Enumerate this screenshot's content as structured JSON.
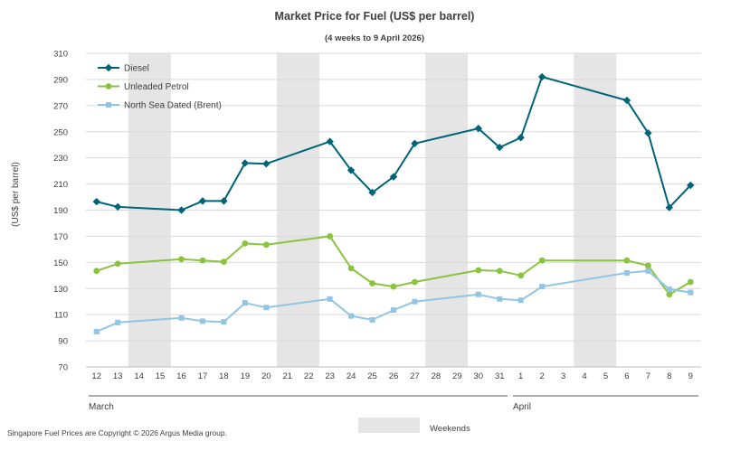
{
  "chart_data": {
    "type": "line",
    "title": "Market Price for Fuel (US$ per barrel)",
    "subtitle": "(4 weeks to 9 April 2026)",
    "xlabel": "",
    "ylabel": "(US$ per barrel)",
    "ylim": [
      70,
      310
    ],
    "yticks": [
      70,
      90,
      110,
      130,
      150,
      170,
      190,
      210,
      230,
      250,
      270,
      290,
      310
    ],
    "grid": true,
    "legend_position": "top-left",
    "categories": [
      "12",
      "13",
      "14",
      "15",
      "16",
      "17",
      "18",
      "19",
      "20",
      "21",
      "22",
      "23",
      "24",
      "25",
      "26",
      "27",
      "28",
      "29",
      "30",
      "31",
      "1",
      "2",
      "3",
      "4",
      "5",
      "6",
      "7",
      "8",
      "9"
    ],
    "months": [
      {
        "label": "March",
        "from": 0,
        "to": 19
      },
      {
        "label": "April",
        "from": 20,
        "to": 28
      }
    ],
    "weekends": [
      [
        2,
        3
      ],
      [
        9,
        10
      ],
      [
        16,
        17
      ],
      [
        23,
        24
      ]
    ],
    "weekends_label": "Weekends",
    "series": [
      {
        "name": "Diesel",
        "color": "#006479",
        "marker": "diamond",
        "values": [
          196.5,
          192.5,
          null,
          null,
          190,
          197,
          197,
          226,
          225.5,
          null,
          null,
          242.5,
          220.5,
          203.5,
          215.5,
          241,
          null,
          null,
          252.5,
          238,
          245.5,
          292,
          null,
          null,
          null,
          274,
          249,
          192,
          209
        ]
      },
      {
        "name": "Unleaded Petrol",
        "color": "#8ac43f",
        "marker": "circle",
        "values": [
          143.5,
          149,
          null,
          null,
          152.5,
          151.5,
          150.5,
          164.5,
          163.5,
          null,
          null,
          170,
          145.5,
          134,
          131.5,
          135,
          null,
          null,
          144,
          143.5,
          140,
          151.5,
          null,
          null,
          null,
          151.5,
          147.5,
          125.5,
          135
        ]
      },
      {
        "name": "North Sea Dated (Brent)",
        "color": "#92c5e3",
        "marker": "square",
        "values": [
          97,
          104,
          null,
          null,
          107.5,
          105,
          104.5,
          119,
          115.5,
          null,
          null,
          122,
          109,
          106,
          113.5,
          120,
          null,
          null,
          125.5,
          122,
          121,
          131.5,
          null,
          null,
          null,
          142,
          143.5,
          129.5,
          127
        ]
      }
    ]
  },
  "footer": {
    "copyright": "Singapore Fuel Prices are Copyright © 2026 Argus Media group."
  }
}
